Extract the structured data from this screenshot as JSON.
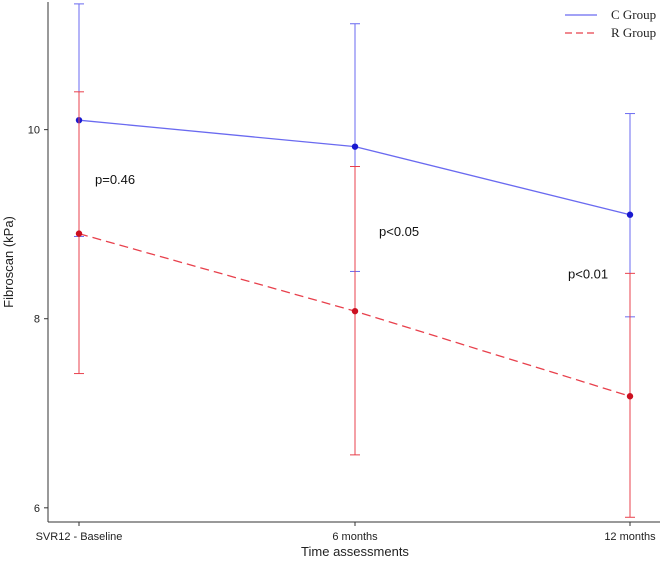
{
  "chart_data": {
    "type": "line",
    "title": "",
    "xlabel": "Time assessments",
    "ylabel": "Fibroscan (kPa)",
    "categories": [
      "SVR12 - Baseline",
      "6 months",
      "12 months"
    ],
    "ylim": [
      5.85,
      11.35
    ],
    "yticks": [
      "6",
      "8",
      "10"
    ],
    "grid": false,
    "legend_position": "top-right",
    "series": [
      {
        "name": "C Group",
        "color": "#6a6af0",
        "line_style": "solid",
        "values": [
          10.1,
          9.82,
          9.1
        ],
        "err_low": [
          8.87,
          8.5,
          8.02
        ],
        "err_high": [
          11.33,
          11.12,
          10.17
        ]
      },
      {
        "name": "R Group",
        "color": "#e8404c",
        "line_style": "dashed",
        "values": [
          8.9,
          8.08,
          7.18
        ],
        "err_low": [
          7.42,
          6.56,
          5.9
        ],
        "err_high": [
          10.4,
          9.61,
          8.48
        ]
      }
    ],
    "annotations": [
      {
        "text": "p=0.46",
        "x": "SVR12 - Baseline",
        "y": 9.48
      },
      {
        "text": "p<0.05",
        "x": "6 months",
        "y": 8.93
      },
      {
        "text": "p<0.01",
        "x": "12 months",
        "y": 8.48
      }
    ]
  }
}
